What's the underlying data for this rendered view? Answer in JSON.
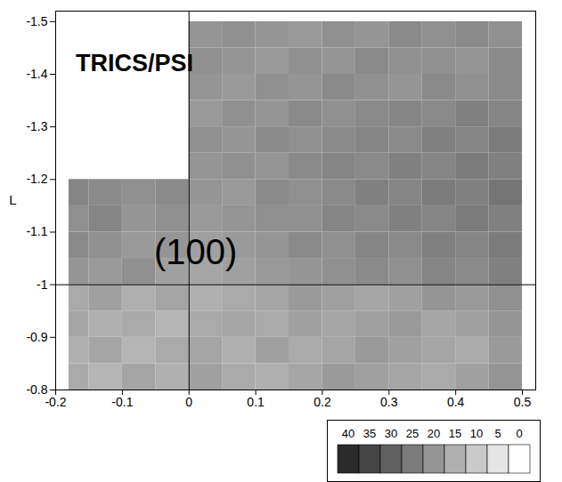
{
  "chart_data": {
    "type": "heatmap",
    "y_label": "L",
    "annotations": [
      {
        "text": "TRICS/PSI",
        "x": -0.17,
        "y": -1.42
      },
      {
        "text": "(100)",
        "x": 0.01,
        "y": -1.06
      }
    ],
    "reference_lines": {
      "x": [
        0
      ],
      "y": [
        -1
      ]
    },
    "xlim": [
      -0.2,
      0.52
    ],
    "xticks": [
      -0.2,
      -0.1,
      0,
      0.1,
      0.2,
      0.3,
      0.4,
      0.5
    ],
    "ylim": [
      -0.8,
      -1.52
    ],
    "yticks": [
      -1.5,
      -1.4,
      -1.3,
      -1.2,
      -1.1,
      -1,
      -0.9,
      -0.8
    ],
    "legend": "bottom",
    "cells": {
      "x_edges": [
        -0.18,
        -0.15,
        -0.1,
        -0.05,
        0,
        0.05,
        0.1,
        0.15,
        0.2,
        0.25,
        0.3,
        0.35,
        0.4,
        0.45,
        0.5
      ],
      "y_edges": [
        -0.8,
        -0.85,
        -0.9,
        -0.95,
        -1,
        -1.05,
        -1.1,
        -1.15,
        -1.2,
        -1.25,
        -1.3,
        -1.35,
        -1.4,
        -1.45,
        -1.5
      ],
      "values": [
        [
          16,
          14,
          17,
          15,
          18,
          16,
          15,
          17,
          19,
          18,
          17,
          16,
          18,
          20
        ],
        [
          15,
          17,
          14,
          16,
          17,
          15,
          18,
          16,
          17,
          19,
          18,
          17,
          16,
          19
        ],
        [
          17,
          15,
          16,
          14,
          16,
          17,
          16,
          18,
          17,
          18,
          19,
          17,
          18,
          20
        ],
        [
          16,
          18,
          15,
          17,
          15,
          16,
          17,
          19,
          18,
          17,
          18,
          20,
          19,
          21
        ],
        [
          20,
          19,
          21,
          18,
          17,
          18,
          19,
          20,
          21,
          22,
          21,
          23,
          22,
          24
        ],
        [
          22,
          21,
          19,
          20,
          18,
          19,
          20,
          22,
          21,
          23,
          22,
          24,
          23,
          25
        ],
        [
          21,
          23,
          20,
          21,
          19,
          20,
          21,
          21,
          23,
          22,
          24,
          23,
          25,
          24
        ],
        [
          23,
          22,
          21,
          22,
          20,
          19,
          22,
          21,
          22,
          24,
          23,
          25,
          24,
          26
        ],
        [
          null,
          null,
          null,
          null,
          20,
          21,
          20,
          22,
          23,
          22,
          24,
          23,
          25,
          24
        ],
        [
          null,
          null,
          null,
          null,
          21,
          20,
          22,
          21,
          22,
          23,
          22,
          24,
          23,
          25
        ],
        [
          null,
          null,
          null,
          null,
          19,
          21,
          20,
          22,
          21,
          22,
          23,
          22,
          24,
          23
        ],
        [
          null,
          null,
          null,
          null,
          20,
          19,
          21,
          20,
          22,
          21,
          20,
          22,
          21,
          22
        ],
        [
          null,
          null,
          null,
          null,
          21,
          20,
          19,
          21,
          20,
          22,
          21,
          21,
          20,
          22
        ],
        [
          null,
          null,
          null,
          null,
          20,
          21,
          20,
          19,
          21,
          20,
          22,
          21,
          22,
          21
        ]
      ]
    },
    "colorbar": {
      "lim": [
        0,
        40
      ],
      "ticks": [
        40,
        35,
        30,
        25,
        20,
        15,
        10,
        5,
        0
      ]
    }
  }
}
